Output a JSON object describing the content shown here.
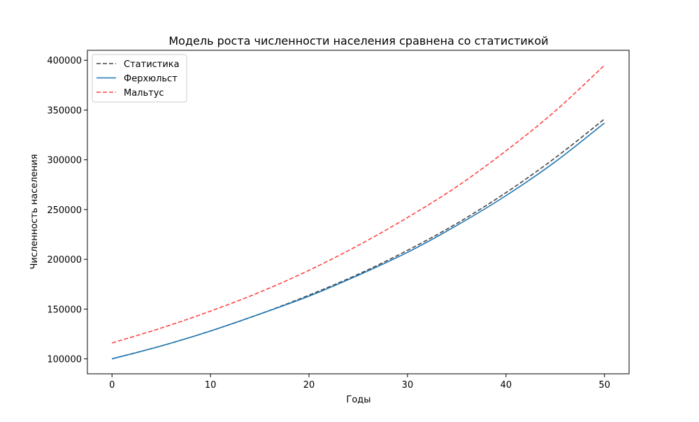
{
  "chart_data": {
    "type": "line",
    "title": "Модель роста численности населения сравнена со статистикой",
    "xlabel": "Годы",
    "ylabel": "Численность населения",
    "xlim": [
      -2.5,
      52.5
    ],
    "ylim": [
      85000,
      410000
    ],
    "x_ticks": [
      0,
      10,
      20,
      30,
      40,
      50
    ],
    "y_ticks": [
      100000,
      150000,
      200000,
      250000,
      300000,
      350000,
      400000
    ],
    "x_tick_labels": [
      "0",
      "10",
      "20",
      "30",
      "40",
      "50"
    ],
    "y_tick_labels": [
      "100000",
      "150000",
      "200000",
      "250000",
      "300000",
      "350000",
      "400000"
    ],
    "grid": false,
    "legend_position": "top-left",
    "x": [
      0,
      5,
      10,
      15,
      20,
      25,
      30,
      35,
      40,
      45,
      50
    ],
    "series": [
      {
        "name": "Статистика",
        "color": "#444444",
        "style": "dashed",
        "values": [
          100000,
          113000,
          128000,
          145000,
          164000,
          185000,
          209000,
          236000,
          267000,
          302000,
          341000
        ]
      },
      {
        "name": "Ферхюльст",
        "color": "#1f77b4",
        "style": "solid",
        "values": [
          100000,
          113000,
          128000,
          145000,
          163000,
          184000,
          207000,
          234000,
          264000,
          298000,
          337000
        ]
      },
      {
        "name": "Мальтус",
        "color": "#ff4444",
        "style": "dashed",
        "values": [
          116000,
          131000,
          148000,
          167000,
          189000,
          214000,
          242000,
          273000,
          309000,
          349000,
          395000
        ]
      }
    ]
  }
}
